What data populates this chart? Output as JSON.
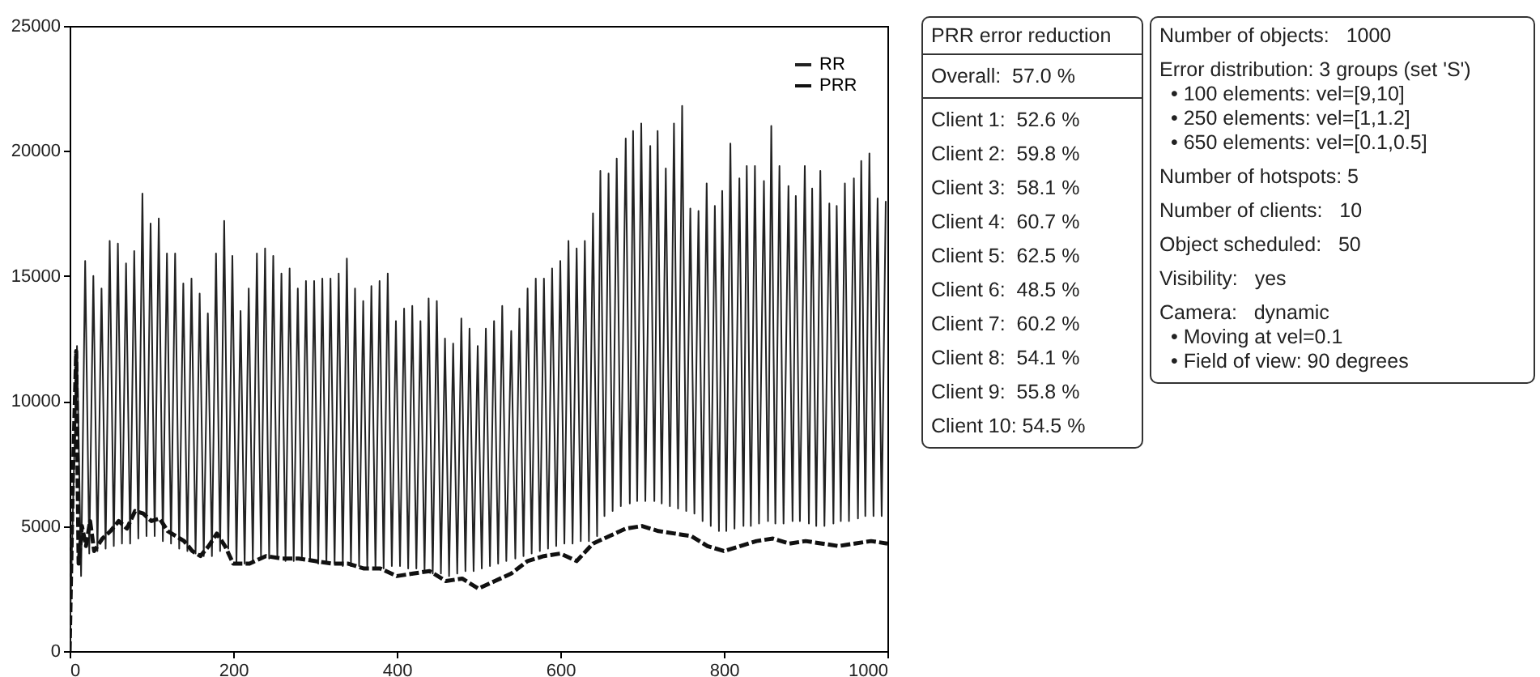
{
  "chart_data": [
    {
      "type": "line",
      "xlim": [
        0,
        1000
      ],
      "ylim": [
        0,
        25000
      ],
      "xticks": [
        0,
        200,
        400,
        600,
        800,
        1000
      ],
      "yticks": [
        0,
        5000,
        10000,
        15000,
        20000,
        25000
      ],
      "legend": "top right",
      "series": [
        {
          "name": "RR",
          "color": "#222222",
          "line_style": "solid",
          "x": [
            0,
            9,
            14,
            19,
            24,
            29,
            34,
            39,
            44,
            49,
            54,
            59,
            64,
            69,
            74,
            79,
            84,
            89,
            94,
            99,
            104,
            109,
            114,
            119,
            124,
            129,
            134,
            139,
            144,
            149,
            154,
            159,
            164,
            169,
            174,
            179,
            184,
            189,
            194,
            199,
            204,
            209,
            214,
            219,
            224,
            229,
            234,
            239,
            244,
            249,
            254,
            259,
            264,
            269,
            274,
            279,
            284,
            289,
            294,
            299,
            304,
            309,
            314,
            319,
            324,
            329,
            334,
            339,
            344,
            349,
            354,
            359,
            364,
            369,
            374,
            379,
            384,
            389,
            394,
            399,
            404,
            409,
            414,
            419,
            424,
            429,
            434,
            439,
            444,
            449,
            454,
            459,
            464,
            469,
            474,
            479,
            484,
            489,
            494,
            499,
            504,
            509,
            514,
            519,
            524,
            529,
            534,
            540,
            545,
            550,
            555,
            560,
            565,
            570,
            575,
            580,
            585,
            590,
            595,
            600,
            605,
            610,
            615,
            620,
            625,
            630,
            635,
            640,
            645,
            649,
            654,
            659,
            664,
            669,
            674,
            680,
            685,
            689,
            694,
            699,
            704,
            710,
            715,
            719,
            724,
            729,
            734,
            739,
            744,
            749,
            754,
            759,
            764,
            769,
            774,
            779,
            784,
            789,
            794,
            798,
            803,
            808,
            813,
            819,
            824,
            828,
            833,
            838,
            843,
            849,
            854,
            858,
            863,
            868,
            873,
            879,
            884,
            888,
            893,
            899,
            904,
            908,
            913,
            918,
            923,
            929,
            934,
            938,
            943,
            948,
            953,
            959,
            964,
            968,
            973,
            978,
            983,
            988,
            993,
            998
          ],
          "values": [
            300,
            12200,
            3000,
            15600,
            3900,
            15000,
            4000,
            14500,
            4100,
            16400,
            4200,
            16300,
            4300,
            15500,
            4300,
            16000,
            4500,
            18300,
            4600,
            17100,
            4600,
            17300,
            4400,
            15900,
            4300,
            15900,
            4100,
            14700,
            4000,
            14900,
            3900,
            14300,
            3800,
            13500,
            3800,
            15900,
            4000,
            17200,
            4100,
            15800,
            3500,
            13600,
            3500,
            14500,
            3600,
            15900,
            3800,
            16100,
            3700,
            15800,
            3700,
            15100,
            3600,
            15300,
            3600,
            14500,
            3700,
            14800,
            3600,
            14800,
            3500,
            14900,
            3500,
            14900,
            3500,
            15100,
            3400,
            15700,
            3400,
            14500,
            3400,
            14000,
            3300,
            14600,
            3300,
            14800,
            3300,
            15100,
            3400,
            13200,
            3400,
            13700,
            3300,
            13800,
            3300,
            13200,
            3200,
            14100,
            3100,
            14000,
            3100,
            12500,
            3000,
            12300,
            3100,
            13300,
            3200,
            12900,
            3200,
            12200,
            3300,
            12900,
            3400,
            13200,
            3500,
            13800,
            3600,
            12800,
            3700,
            13700,
            3800,
            14500,
            3900,
            14900,
            4000,
            14900,
            4100,
            15300,
            4200,
            15600,
            4300,
            16400,
            4300,
            16100,
            4400,
            16400,
            4400,
            17500,
            4600,
            19200,
            5400,
            19100,
            5600,
            19700,
            5800,
            20500,
            5900,
            20800,
            6000,
            21100,
            6000,
            20200,
            6000,
            20800,
            5900,
            19300,
            5800,
            21100,
            5700,
            21800,
            5600,
            17700,
            5500,
            17600,
            5200,
            18700,
            5000,
            17800,
            4800,
            18400,
            4800,
            20300,
            4900,
            18900,
            5000,
            19400,
            5000,
            19400,
            5100,
            18800,
            5200,
            21000,
            5100,
            19400,
            5100,
            18600,
            5200,
            18200,
            5200,
            19400,
            5100,
            18500,
            5000,
            19200,
            5000,
            17900,
            5100,
            17800,
            5200,
            18700,
            5200,
            18900,
            5300,
            19600,
            5400,
            19900,
            5400,
            18100,
            5400,
            18000
          ]
        },
        {
          "name": "PRR",
          "color": "#111111",
          "line_style": "dashed",
          "x": [
            0,
            4,
            8,
            11,
            15,
            20,
            25,
            30,
            40,
            50,
            60,
            70,
            80,
            90,
            100,
            110,
            120,
            130,
            140,
            150,
            160,
            170,
            180,
            190,
            200,
            220,
            240,
            260,
            280,
            300,
            320,
            340,
            360,
            380,
            400,
            420,
            440,
            460,
            480,
            500,
            520,
            540,
            560,
            580,
            600,
            620,
            640,
            660,
            680,
            700,
            720,
            740,
            760,
            780,
            800,
            820,
            840,
            860,
            880,
            900,
            920,
            940,
            960,
            980,
            1000
          ],
          "values": [
            0,
            7000,
            12000,
            3500,
            5000,
            4200,
            5200,
            4000,
            4500,
            4800,
            5200,
            4900,
            5600,
            5500,
            5200,
            5300,
            4800,
            4600,
            4400,
            4000,
            3800,
            4200,
            4700,
            4200,
            3500,
            3500,
            3800,
            3700,
            3700,
            3600,
            3500,
            3500,
            3300,
            3300,
            3000,
            3100,
            3200,
            2800,
            2900,
            2500,
            2800,
            3100,
            3600,
            3800,
            3900,
            3600,
            4300,
            4600,
            4900,
            5000,
            4800,
            4700,
            4600,
            4200,
            4000,
            4200,
            4400,
            4500,
            4300,
            4400,
            4300,
            4200,
            4300,
            4400,
            4300
          ]
        }
      ]
    },
    {
      "type": "other",
      "title": "PRR error reduction",
      "annotations": [
        "Overall:  57.0 %",
        "Client 1:  52.6 %",
        "Client 2:  59.8 %",
        "Client 3:  58.1 %",
        "Client 4:  60.7 %",
        "Client 5:  62.5 %",
        "Client 6:  48.5 %",
        "Client 7:  60.2 %",
        "Client 8:  54.1 %",
        "Client 9:  55.8 %",
        "Client 10: 54.5 %"
      ]
    },
    {
      "type": "other",
      "annotations": [
        "Number of objects:   1000",
        "Error distribution: 3 groups (set 'S')",
        "• 100 elements: vel=[9,10]",
        "• 250 elements: vel=[1,1.2]",
        "• 650 elements: vel=[0.1,0.5]",
        "Number of hotspots: 5",
        "Number of clients:   10",
        "Object scheduled:   50",
        "Visibility:   yes",
        "Camera:   dynamic",
        "• Moving at vel=0.1",
        "• Field of view: 90 degrees"
      ]
    }
  ]
}
